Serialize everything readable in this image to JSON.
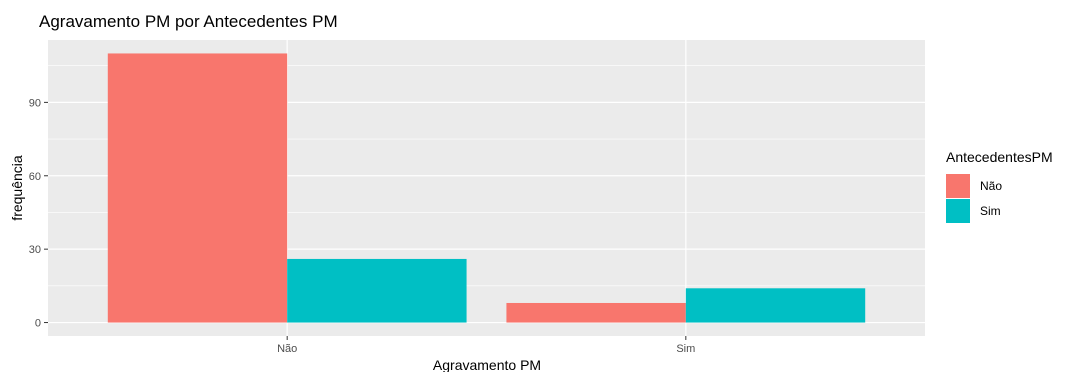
{
  "chart_data": {
    "type": "bar",
    "title": "Agravamento PM por Antecedentes PM",
    "xlabel": "Agravamento PM",
    "ylabel": "frequência",
    "categories": [
      "Não",
      "Sim"
    ],
    "series": [
      {
        "name": "Não",
        "values": [
          110,
          8
        ],
        "color": "#F8766D"
      },
      {
        "name": "Sim",
        "values": [
          26,
          14
        ],
        "color": "#00BFC4"
      }
    ],
    "yticks": [
      0,
      30,
      60,
      90
    ],
    "ylim": [
      -5.5,
      115.5
    ],
    "legend": {
      "title": "AntecedentesPM",
      "placement": "right"
    },
    "grid": true,
    "panel_background": "#EBEBEB"
  }
}
